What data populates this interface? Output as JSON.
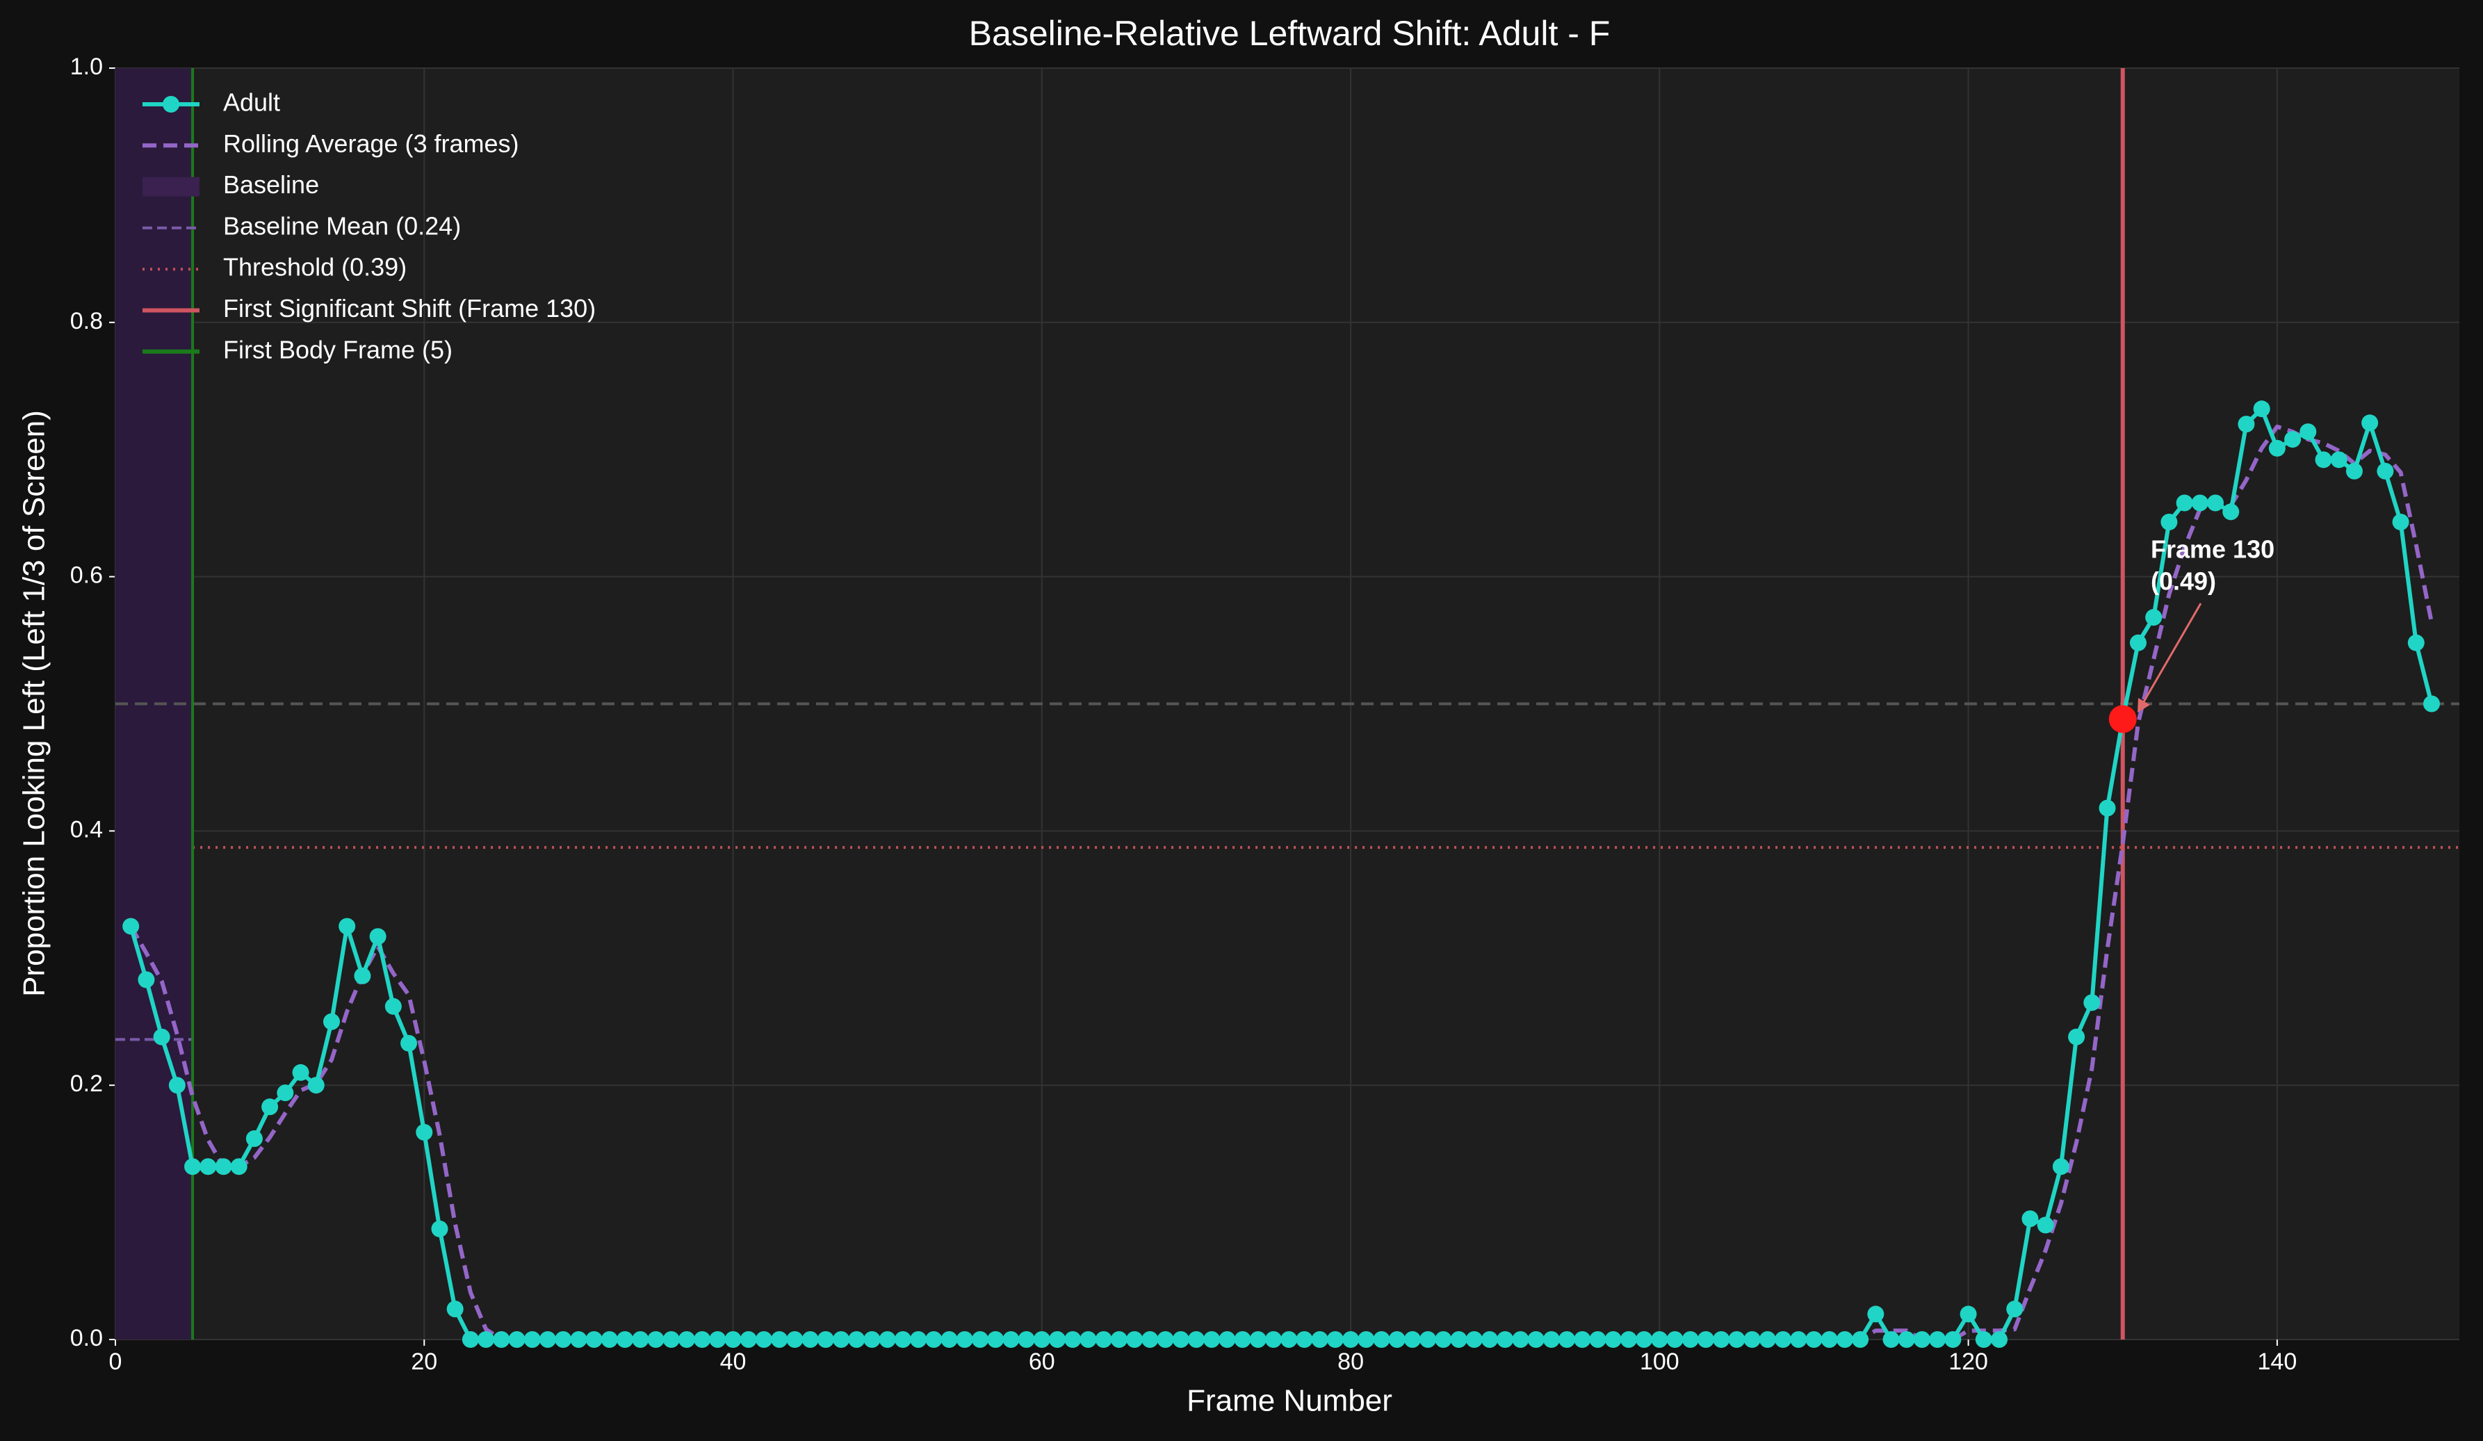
{
  "chart_data": {
    "type": "line",
    "title": "Baseline-Relative Leftward Shift: Adult - F",
    "xlabel": "Frame Number",
    "ylabel": "Proportion Looking Left (Left 1/3 of Screen)",
    "x": [
      1,
      2,
      3,
      4,
      5,
      6,
      7,
      8,
      9,
      10,
      11,
      12,
      13,
      14,
      15,
      16,
      17,
      18,
      19,
      20,
      21,
      22,
      23,
      24,
      25,
      26,
      27,
      28,
      29,
      30,
      31,
      32,
      33,
      34,
      35,
      36,
      37,
      38,
      39,
      40,
      41,
      42,
      43,
      44,
      45,
      46,
      47,
      48,
      49,
      50,
      51,
      52,
      53,
      54,
      55,
      56,
      57,
      58,
      59,
      60,
      61,
      62,
      63,
      64,
      65,
      66,
      67,
      68,
      69,
      70,
      71,
      72,
      73,
      74,
      75,
      76,
      77,
      78,
      79,
      80,
      81,
      82,
      83,
      84,
      85,
      86,
      87,
      88,
      89,
      90,
      91,
      92,
      93,
      94,
      95,
      96,
      97,
      98,
      99,
      100,
      101,
      102,
      103,
      104,
      105,
      106,
      107,
      108,
      109,
      110,
      111,
      112,
      113,
      114,
      115,
      116,
      117,
      118,
      119,
      120,
      121,
      122,
      123,
      124,
      125,
      126,
      127,
      128,
      129,
      130,
      131,
      132,
      133,
      134,
      135,
      136,
      137,
      138,
      139,
      140,
      141,
      142,
      143,
      144,
      145,
      146,
      147,
      148,
      149,
      150
    ],
    "series": [
      {
        "name": "Adult",
        "color": "#20d5c5",
        "values": [
          0.325,
          0.283,
          0.238,
          0.2,
          0.136,
          0.136,
          0.136,
          0.136,
          0.158,
          0.183,
          0.194,
          0.21,
          0.2,
          0.25,
          0.325,
          0.286,
          0.317,
          0.262,
          0.233,
          0.163,
          0.087,
          0.024,
          0,
          0,
          0,
          0,
          0,
          0,
          0,
          0,
          0,
          0,
          0,
          0,
          0,
          0,
          0,
          0,
          0,
          0,
          0,
          0,
          0,
          0,
          0,
          0,
          0,
          0,
          0,
          0,
          0,
          0,
          0,
          0,
          0,
          0,
          0,
          0,
          0,
          0,
          0,
          0,
          0,
          0,
          0,
          0,
          0,
          0,
          0,
          0,
          0,
          0,
          0,
          0,
          0,
          0,
          0,
          0,
          0,
          0,
          0,
          0,
          0,
          0,
          0,
          0,
          0,
          0,
          0,
          0,
          0,
          0,
          0,
          0,
          0,
          0,
          0,
          0,
          0,
          0,
          0,
          0,
          0,
          0,
          0,
          0,
          0,
          0,
          0,
          0,
          0,
          0,
          0,
          0.02,
          0,
          0,
          0,
          0,
          0,
          0.02,
          0,
          0,
          0.024,
          0.095,
          0.09,
          0.136,
          0.238,
          0.265,
          0.418,
          0.488,
          0.548,
          0.568,
          0.643,
          0.658,
          0.658,
          0.658,
          0.651,
          0.72,
          0.732,
          0.701,
          0.708,
          0.714,
          0.692,
          0.692,
          0.683,
          0.721,
          0.683,
          0.643,
          0.548,
          0.5
        ]
      },
      {
        "name": "Rolling Average (3 frames)",
        "color": "#9466c8",
        "dashed": true,
        "values": [
          0.325,
          0.304,
          0.282,
          0.24,
          0.191,
          0.157,
          0.136,
          0.136,
          0.143,
          0.159,
          0.178,
          0.196,
          0.201,
          0.22,
          0.258,
          0.287,
          0.309,
          0.288,
          0.271,
          0.219,
          0.161,
          0.091,
          0.037,
          0.008,
          0,
          0,
          0,
          0,
          0,
          0,
          0,
          0,
          0,
          0,
          0,
          0,
          0,
          0,
          0,
          0,
          0,
          0,
          0,
          0,
          0,
          0,
          0,
          0,
          0,
          0,
          0,
          0,
          0,
          0,
          0,
          0,
          0,
          0,
          0,
          0,
          0,
          0,
          0,
          0,
          0,
          0,
          0,
          0,
          0,
          0,
          0,
          0,
          0,
          0,
          0,
          0,
          0,
          0,
          0,
          0,
          0,
          0,
          0,
          0,
          0,
          0,
          0,
          0,
          0,
          0,
          0,
          0,
          0,
          0,
          0,
          0,
          0,
          0,
          0,
          0,
          0,
          0,
          0,
          0,
          0,
          0,
          0,
          0,
          0,
          0,
          0,
          0,
          0,
          0.007,
          0.007,
          0.007,
          0,
          0,
          0,
          0.007,
          0.007,
          0.007,
          0.008,
          0.04,
          0.07,
          0.107,
          0.155,
          0.213,
          0.307,
          0.39,
          0.485,
          0.535,
          0.586,
          0.623,
          0.653,
          0.658,
          0.656,
          0.676,
          0.701,
          0.718,
          0.714,
          0.708,
          0.705,
          0.699,
          0.689,
          0.699,
          0.696,
          0.682,
          0.625,
          0.564
        ]
      }
    ],
    "baseline": {
      "name": "Baseline",
      "xlim": [
        0,
        5
      ],
      "color": "#2b1a3c"
    },
    "baseline_mean": {
      "name": "Baseline Mean (0.24)",
      "value": 0.236,
      "color": "#7a5aa8"
    },
    "threshold": {
      "name": "Threshold (0.39)",
      "value": 0.387,
      "color": "#c4505a"
    },
    "shift": {
      "name": "First Significant Shift (Frame 130)",
      "x": 130,
      "y": 0.488,
      "color": "#cf5560",
      "marker_color": "#ff1a1a"
    },
    "body": {
      "name": "First Body Frame (5)",
      "x": 5,
      "color": "#1b7a1b"
    },
    "reference_y": 0.5,
    "annotation": [
      "Frame 130",
      "(0.49)"
    ],
    "xlim": [
      0,
      151.8
    ],
    "ylim": [
      0,
      1
    ],
    "xticks": [
      0,
      20,
      40,
      60,
      80,
      100,
      120,
      140
    ],
    "yticks": [
      {
        "value": 0,
        "label": "0.0"
      },
      {
        "value": 0.2,
        "label": "0.2"
      },
      {
        "value": 0.4,
        "label": "0.4"
      },
      {
        "value": 0.6,
        "label": "0.6"
      },
      {
        "value": 0.8,
        "label": "0.8"
      },
      {
        "value": 1,
        "label": "1.0"
      }
    ],
    "grid": true
  }
}
